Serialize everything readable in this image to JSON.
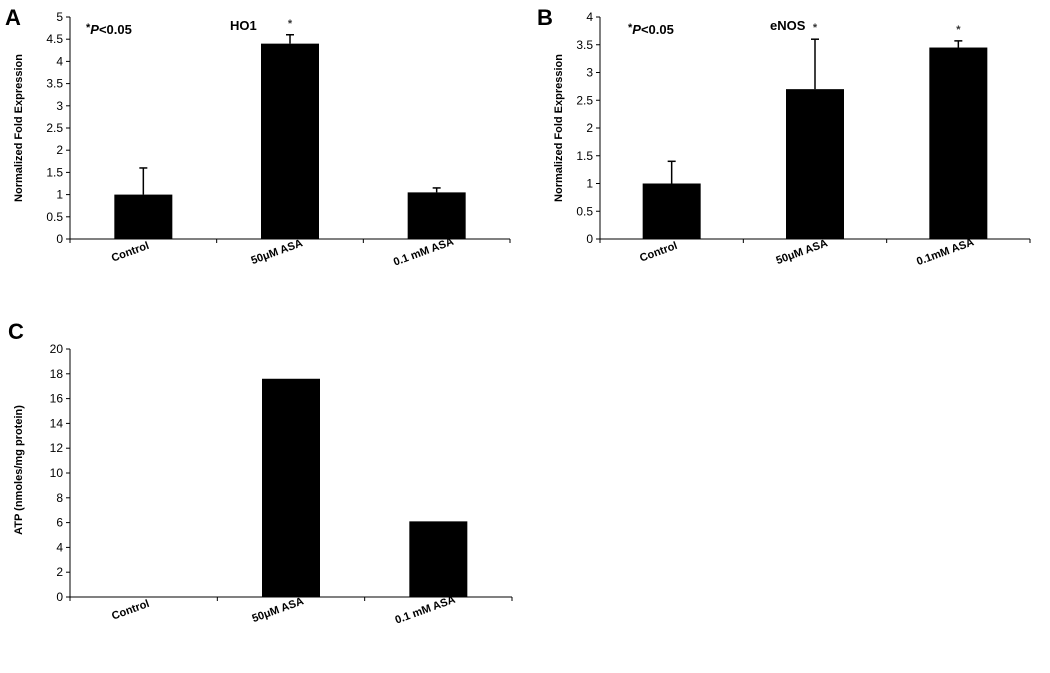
{
  "chart_data": [
    {
      "type": "bar",
      "panel": "A",
      "title": "HO1",
      "annotation": {
        "star": "*",
        "p_italic": "P",
        "p_rest": "<0.05"
      },
      "ylabel": "Normalized Fold Expression",
      "ylim": [
        0,
        5
      ],
      "yticks": [
        "0",
        "0.5",
        "1",
        "1.5",
        "2",
        "2.5",
        "3",
        "3.5",
        "4",
        "4.5",
        "5"
      ],
      "categories": [
        "Control",
        "50μM ASA",
        "0.1 mM ASA"
      ],
      "values": [
        1.0,
        4.4,
        1.05
      ],
      "errors": [
        0.6,
        0.2,
        0.1
      ],
      "significance": [
        "",
        "*",
        ""
      ],
      "grid": false
    },
    {
      "type": "bar",
      "panel": "B",
      "title": "eNOS",
      "annotation": {
        "star": "*",
        "p_italic": "P",
        "p_rest": "<0.05"
      },
      "ylabel": "Normalized Fold Expression",
      "ylim": [
        0,
        4
      ],
      "yticks": [
        "0",
        "0.5",
        "1",
        "1.5",
        "2",
        "2.5",
        "3",
        "3.5",
        "4"
      ],
      "categories": [
        "Control",
        "50μM ASA",
        "0.1mM ASA"
      ],
      "values": [
        1.0,
        2.7,
        3.45
      ],
      "errors": [
        0.4,
        0.9,
        0.12
      ],
      "significance": [
        "",
        "*",
        "*"
      ],
      "grid": false
    },
    {
      "type": "bar",
      "panel": "C",
      "title": "",
      "ylabel": "ATP (nmoles/mg protein)",
      "ylim": [
        0,
        20
      ],
      "yticks": [
        "0",
        "2",
        "4",
        "6",
        "8",
        "10",
        "12",
        "14",
        "16",
        "18",
        "20"
      ],
      "categories": [
        "Control",
        "50μM ASA",
        "0.1 mM ASA"
      ],
      "values": [
        0,
        17.6,
        6.1
      ],
      "errors": [
        0,
        0,
        0
      ],
      "significance": [
        "",
        "",
        ""
      ],
      "grid": false
    }
  ]
}
